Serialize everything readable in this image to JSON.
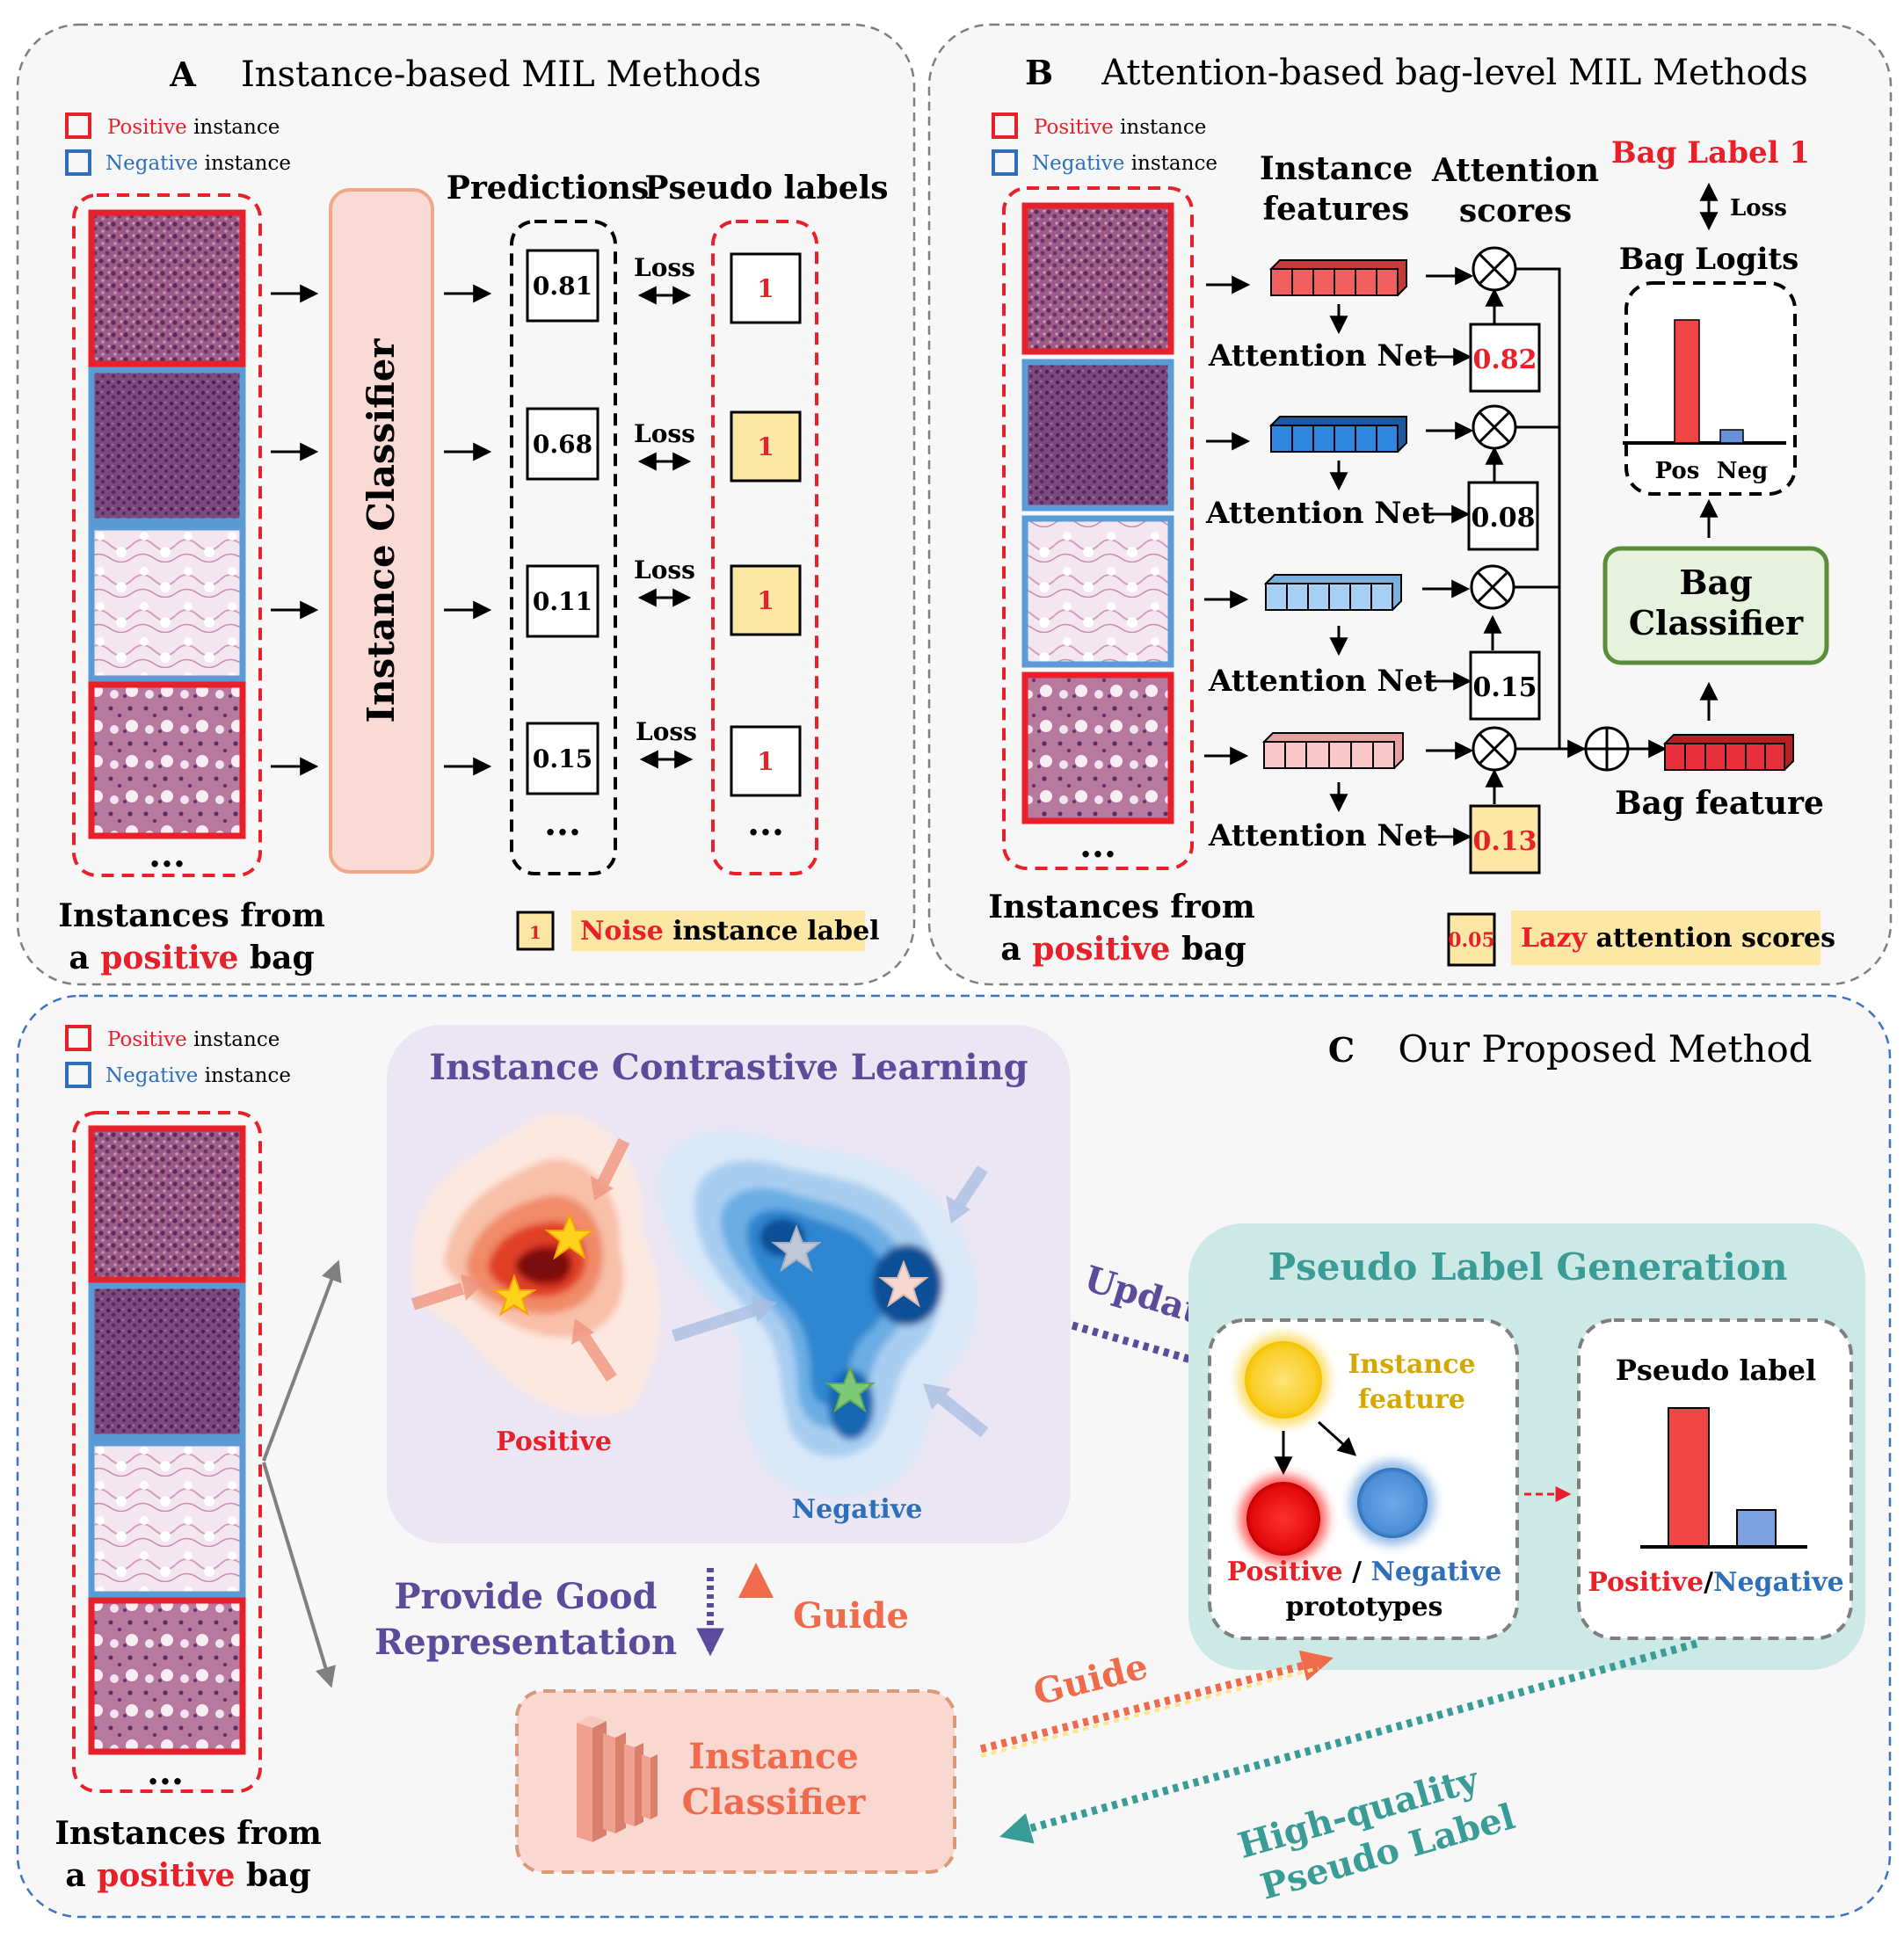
{
  "colors": {
    "pos_red": "#e8202a",
    "neg_blue": "#2d6fb8",
    "noise_yellow": "#fde7a4",
    "green": "#5a8c3a",
    "purple": "#5b4b9a",
    "teal": "#3a9c96",
    "salmon": "#e8795e"
  },
  "panelA": {
    "letter": "A",
    "title": "Instance-based MIL Methods",
    "legend_pos_word": "Positive",
    "legend_neg_word": "Negative",
    "legend_instance": "instance",
    "classifier": "Instance Classifier",
    "predictions_header": "Predictions",
    "pseudo_header": "Pseudo labels",
    "predictions": [
      "0.81",
      "0.68",
      "0.11",
      "0.15"
    ],
    "pseudo_labels": [
      "1",
      "1",
      "1",
      "1"
    ],
    "loss": "Loss",
    "ellipsis": "...",
    "caption_line1": "Instances from",
    "caption_a": "a",
    "caption_positive": "positive",
    "caption_bag": "bag",
    "noise_box": "1",
    "noise_word": "Noise",
    "noise_rest": "instance label"
  },
  "panelB": {
    "letter": "B",
    "title": "Attention-based bag-level MIL Methods",
    "legend_pos_word": "Positive",
    "legend_neg_word": "Negative",
    "legend_instance": "instance",
    "instance_features_1": "Instance",
    "instance_features_2": "features",
    "attention_scores_1": "Attention",
    "attention_scores_2": "scores",
    "attention_net": "Attention Net",
    "scores": [
      "0.82",
      "0.08",
      "0.15",
      "0.13"
    ],
    "bag_label": "Bag Label 1",
    "loss": "Loss",
    "bag_logits": "Bag Logits",
    "pos": "Pos",
    "neg": "Neg",
    "bag_classifier_1": "Bag",
    "bag_classifier_2": "Classifier",
    "bag_feature": "Bag feature",
    "ellipsis": "...",
    "caption_line1": "Instances from",
    "caption_a": "a",
    "caption_positive": "positive",
    "caption_bag": "bag",
    "lazy_box": "0.05",
    "lazy_word": "Lazy",
    "lazy_rest": "attention scores"
  },
  "panelC": {
    "letter": "C",
    "title": "Our Proposed Method",
    "legend_pos_word": "Positive",
    "legend_neg_word": "Negative",
    "legend_instance": "instance",
    "icl_title": "Instance Contrastive Learning",
    "positive": "Positive",
    "negative": "Negative",
    "plg_title": "Pseudo Label Generation",
    "update": "Update",
    "instance_feature_1": "Instance",
    "instance_feature_2": "feature",
    "proto_pos": "Positive",
    "proto_slash": " / ",
    "proto_neg": "Negative",
    "prototypes": "prototypes",
    "pseudo_label": "Pseudo label",
    "pl_pos": "Positive",
    "pl_slash": "/",
    "pl_neg": "Negative",
    "provide_1": "Provide Good",
    "provide_2": "Representation",
    "guide": "Guide",
    "guide2": "Guide",
    "classifier_1": "Instance",
    "classifier_2": "Classifier",
    "hq_1": "High-quality",
    "hq_2": "Pseudo Label",
    "ellipsis": "...",
    "caption_line1": "Instances from",
    "caption_a": "a",
    "caption_positive": "positive",
    "caption_bag": "bag"
  }
}
